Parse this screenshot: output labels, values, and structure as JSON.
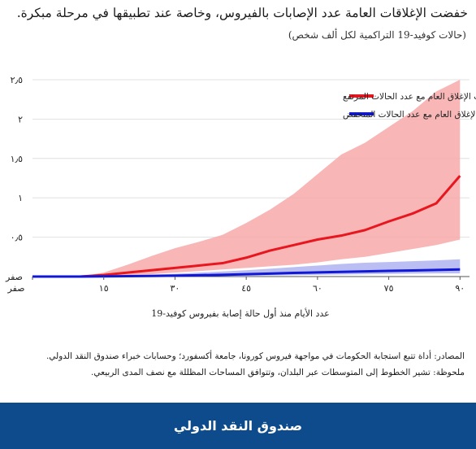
{
  "header": {
    "title": "خفضت الإغلاقات العامة عدد الإصابات بالفيروس، وخاصة عند تطبيقها في مرحلة مبكرة.",
    "subtitle": "(حالات كوفيد-19 التراكمية لكل ألف شخص)"
  },
  "chart_data": {
    "type": "area",
    "x": [
      0,
      5,
      10,
      15,
      20,
      25,
      30,
      35,
      40,
      45,
      50,
      55,
      60,
      65,
      70,
      75,
      80,
      85,
      90
    ],
    "xlim": [
      0,
      92
    ],
    "ylim": [
      0,
      2.5
    ],
    "xlabel": "عدد الأيام منذ أول حالة إصابة بفيروس كوفيد-19",
    "ylabel": "",
    "x_ticks": [
      {
        "value": 0,
        "label": "صفر"
      },
      {
        "value": 15,
        "label": "١٥"
      },
      {
        "value": 30,
        "label": "٣٠"
      },
      {
        "value": 45,
        "label": "٤٥"
      },
      {
        "value": 60,
        "label": "٦٠"
      },
      {
        "value": 75,
        "label": "٧٥"
      },
      {
        "value": 90,
        "label": "٩٠"
      }
    ],
    "y_ticks": [
      {
        "value": 0,
        "label": "صفر"
      },
      {
        "value": 0.5,
        "label": "٠٫٥"
      },
      {
        "value": 1,
        "label": "١"
      },
      {
        "value": 1.5,
        "label": "١٫٥"
      },
      {
        "value": 2,
        "label": "٢"
      },
      {
        "value": 2.5,
        "label": "٢٫٥"
      }
    ],
    "legend_position": "top-right",
    "series": [
      {
        "name": "البلدان التي أحكمت الإغلاق العام مع عدد الحالات المرتفع",
        "color": "#e8161e",
        "band_color": "#f7a9a9",
        "median": [
          0,
          0,
          0,
          0.02,
          0.05,
          0.08,
          0.11,
          0.14,
          0.17,
          0.24,
          0.33,
          0.4,
          0.47,
          0.52,
          0.59,
          0.7,
          0.8,
          0.93,
          1.28
        ],
        "lower": [
          0,
          0,
          0,
          0.01,
          0.02,
          0.03,
          0.05,
          0.07,
          0.09,
          0.11,
          0.13,
          0.15,
          0.18,
          0.22,
          0.25,
          0.3,
          0.35,
          0.4,
          0.47
        ],
        "upper": [
          0,
          0,
          0,
          0.05,
          0.15,
          0.26,
          0.36,
          0.44,
          0.53,
          0.68,
          0.85,
          1.05,
          1.3,
          1.55,
          1.7,
          1.9,
          2.1,
          2.35,
          2.5
        ]
      },
      {
        "name": "البلدان التي أحكمت الإغلاق العام مع عدد الحالات المنخفض",
        "color": "#1018d6",
        "band_color": "#a9aef0",
        "median": [
          0,
          0,
          0,
          0.002,
          0.005,
          0.008,
          0.012,
          0.017,
          0.022,
          0.03,
          0.038,
          0.046,
          0.053,
          0.06,
          0.066,
          0.072,
          0.078,
          0.084,
          0.09
        ],
        "lower": [
          0,
          0,
          0,
          0.0,
          0.0,
          0.0,
          0.002,
          0.004,
          0.006,
          0.01,
          0.014,
          0.018,
          0.022,
          0.026,
          0.03,
          0.034,
          0.038,
          0.04,
          0.04
        ],
        "upper": [
          0,
          0,
          0,
          0.006,
          0.015,
          0.025,
          0.035,
          0.05,
          0.065,
          0.08,
          0.1,
          0.12,
          0.14,
          0.16,
          0.175,
          0.185,
          0.195,
          0.205,
          0.22
        ]
      }
    ]
  },
  "notes": {
    "source": "المصادر: أداة تتبع استجابة الحكومات في مواجهة فيروس كورونا، جامعة أكسفورد؛ وحسابات خبراء صندوق النقد الدولي.",
    "note": "ملحوظة: تشير الخطوط إلى المتوسطات عبر البلدان، وتتوافق المساحات المظللة مع نصف المدى الربيعي."
  },
  "footer": {
    "label": "صندوق النقد الدولي",
    "color": "#0d4b8c"
  }
}
